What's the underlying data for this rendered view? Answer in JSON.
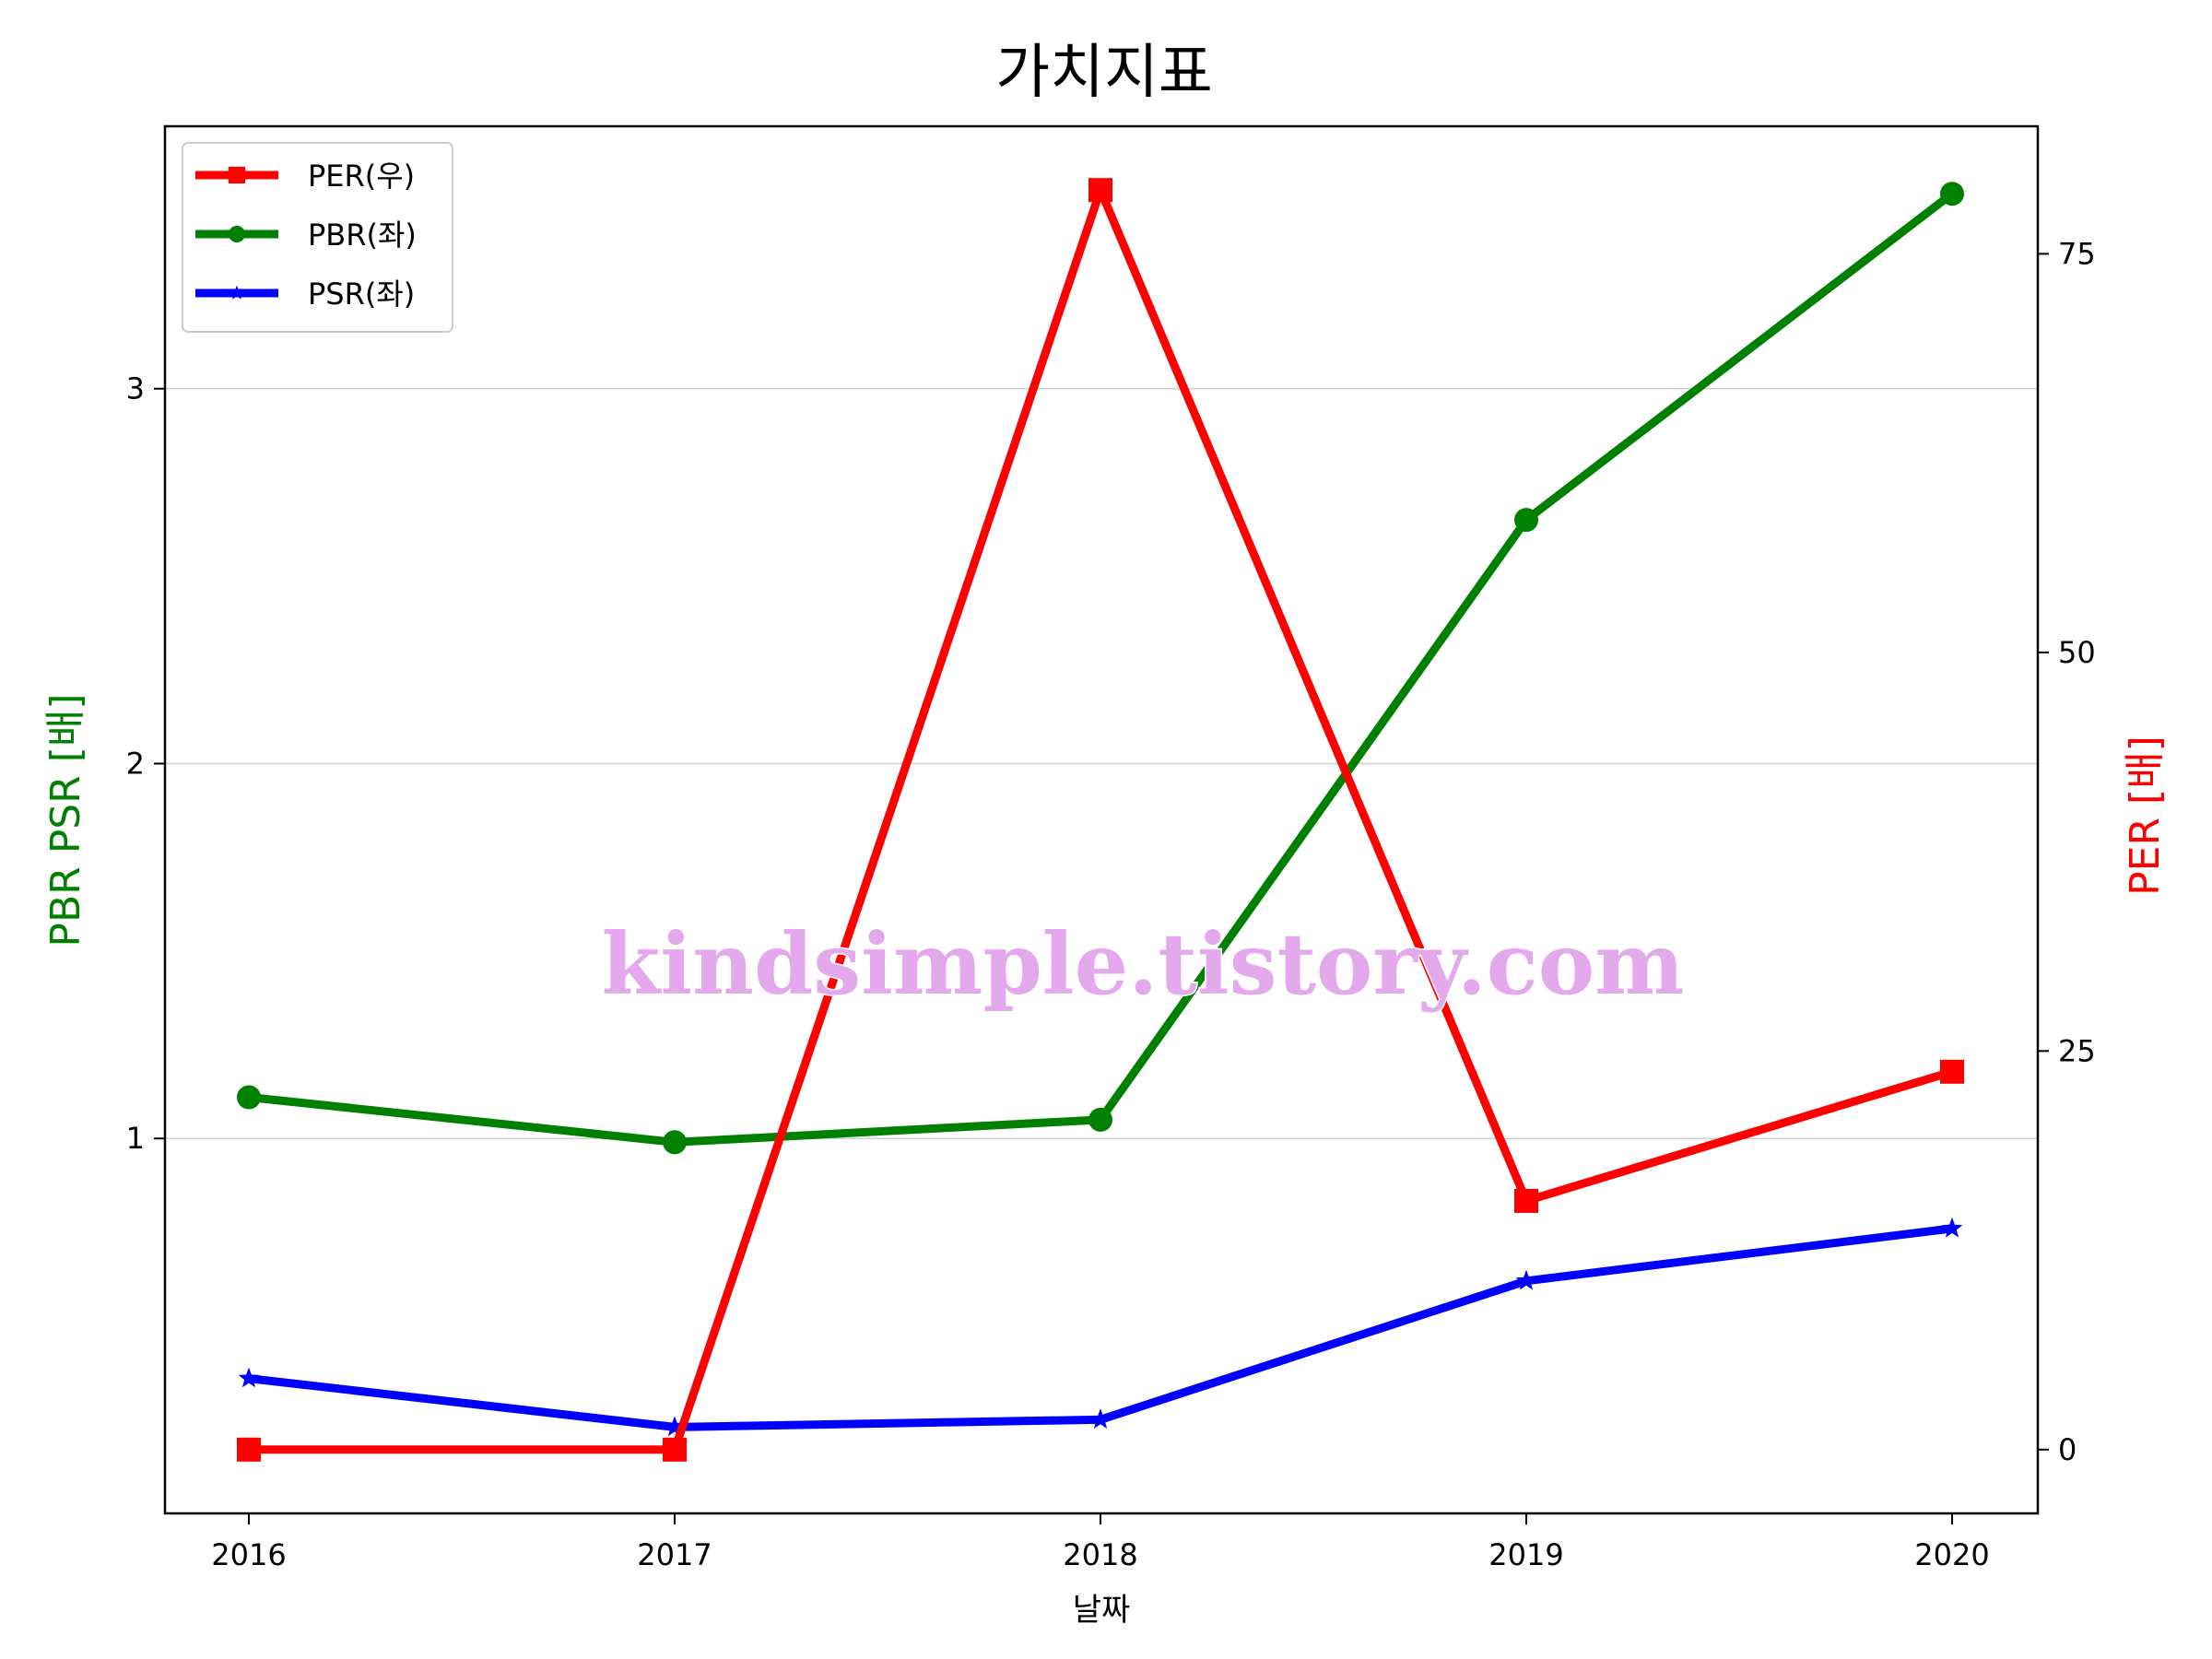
{
  "chart_data": {
    "type": "line",
    "title": "가치지표",
    "xlabel": "날짜",
    "ylabel_left": "PBR PSR [배]",
    "ylabel_right": "PER [배]",
    "categories": [
      "2016",
      "2017",
      "2018",
      "2019",
      "2020"
    ],
    "left_axis": {
      "ylim": [
        0.0,
        3.7
      ],
      "ticks": [
        1,
        2,
        3
      ],
      "tick_labels": [
        "1",
        "2",
        "3"
      ]
    },
    "right_axis": {
      "ylim": [
        -4,
        83
      ],
      "ticks": [
        0,
        25,
        50,
        75
      ],
      "tick_labels": [
        "0",
        "25",
        "50",
        "75"
      ]
    },
    "grid": "horizontal (left axis)",
    "legend_position": "top-left",
    "series": [
      {
        "name": "PER(우)",
        "axis": "right",
        "color": "#ff0000",
        "marker": "square",
        "values": [
          0,
          0,
          79,
          15.6,
          23.7
        ]
      },
      {
        "name": "PBR(좌)",
        "axis": "left",
        "color": "#008000",
        "marker": "circle",
        "values": [
          1.11,
          0.99,
          1.05,
          2.65,
          3.52
        ]
      },
      {
        "name": "PSR(좌)",
        "axis": "left",
        "color": "#0000ff",
        "marker": "star",
        "values": [
          0.36,
          0.23,
          0.25,
          0.62,
          0.76
        ]
      }
    ]
  },
  "watermark": "kindsimple.tistory.com"
}
